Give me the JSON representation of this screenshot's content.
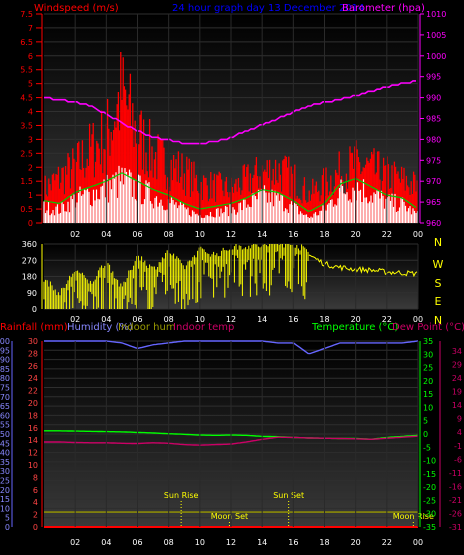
{
  "panel1": {
    "windspeed_label": "Windspeed (m/s)",
    "graph_title": "24 hour graph day  13 December 2014",
    "barometer_label": "Barometer (hpa)",
    "left_ticks": [
      "7.5",
      "7",
      "6.5",
      "6",
      "5.5",
      "5",
      "4.5",
      "4",
      "3.5",
      "3",
      "2.5",
      "2",
      "1.5",
      "1",
      "0.5",
      "0"
    ],
    "right_ticks": [
      "1010",
      "1005",
      "1000",
      "995",
      "990",
      "985",
      "980",
      "975",
      "970",
      "965",
      "960"
    ],
    "x_ticks": [
      "02",
      "04",
      "06",
      "08",
      "10",
      "12",
      "14",
      "16",
      "18",
      "20",
      "22",
      "00"
    ]
  },
  "panel2": {
    "left_ticks": [
      "360",
      "270",
      "180",
      "90",
      "0"
    ],
    "compass": [
      "N",
      "W",
      "S",
      "E",
      "N"
    ],
    "x_ticks": [
      "02",
      "04",
      "06",
      "08",
      "10",
      "12",
      "14",
      "16",
      "18",
      "20",
      "22",
      "00"
    ]
  },
  "panel3": {
    "rain_label": "Rainfall (mm)",
    "humidity_label": "Humidity (%)",
    "indoor_hum_label": "Indoor hum",
    "indoor_temp_label": "Indoor temp",
    "temperature_label": "Temperature (°C)",
    "dewpoint_label": "Dew Point (°C)",
    "humidity_ticks": [
      "100",
      "95",
      "90",
      "85",
      "80",
      "75",
      "70",
      "65",
      "60",
      "55",
      "50",
      "45",
      "40",
      "35",
      "30",
      "25",
      "20",
      "15",
      "10",
      "5",
      "0"
    ],
    "rain_ticks": [
      "30",
      "28",
      "26",
      "24",
      "22",
      "20",
      "18",
      "16",
      "14",
      "12",
      "10",
      "8",
      "6",
      "4",
      "2",
      "0"
    ],
    "temp_ticks": [
      "35",
      "30",
      "25",
      "20",
      "15",
      "10",
      "5",
      "0",
      "-5",
      "-10",
      "-15",
      "-20",
      "-25",
      "-30",
      "-35"
    ],
    "dew_ticks": [
      "34",
      "29",
      "24",
      "19",
      "14",
      "9",
      "4",
      "-1",
      "-6",
      "-11",
      "-16",
      "-21",
      "-26",
      "-31"
    ],
    "x_ticks": [
      "02",
      "04",
      "06",
      "08",
      "10",
      "12",
      "14",
      "16",
      "18",
      "20",
      "22",
      "00"
    ],
    "events": [
      {
        "name": "Sun Rise",
        "hour": 8.8
      },
      {
        "name": "Sun Set",
        "hour": 15.7
      },
      {
        "name": "Moon Set",
        "hour": 11.9
      },
      {
        "name": "Moon Rise",
        "hour": 23.7
      }
    ]
  },
  "chart_data": [
    {
      "type": "area",
      "title": "24 hour graph day  13 December 2014",
      "x_label": "",
      "xlim": [
        0,
        24
      ],
      "ylim_left": [
        0,
        7.5
      ],
      "ylim_right": [
        960,
        1010
      ],
      "series": [
        {
          "name": "Windspeed (m/s)",
          "axis": "left",
          "color": "#ff0000",
          "x": [
            0,
            1,
            2,
            3,
            4,
            5,
            6,
            7,
            8,
            9,
            10,
            11,
            12,
            13,
            14,
            15,
            16,
            17,
            18,
            19,
            20,
            21,
            22,
            23,
            24
          ],
          "values": [
            1.2,
            1.6,
            2.0,
            2.6,
            3.1,
            4.6,
            3.2,
            2.4,
            2.1,
            1.8,
            1.4,
            1.3,
            1.2,
            1.5,
            1.8,
            1.9,
            1.6,
            1.0,
            1.4,
            1.8,
            2.1,
            1.9,
            1.7,
            1.5,
            1.3
          ]
        },
        {
          "name": "Wind average",
          "color": "#ffffff",
          "x": [
            0,
            1,
            2,
            3,
            4,
            5,
            6,
            7,
            8,
            9,
            10,
            11,
            12,
            13,
            14,
            15,
            16,
            17,
            18,
            19,
            20,
            21,
            22,
            23,
            24
          ],
          "values": [
            0.6,
            0.5,
            0.9,
            1.1,
            1.3,
            1.6,
            1.3,
            1.0,
            0.8,
            0.5,
            0.3,
            0.4,
            0.5,
            0.7,
            1.0,
            0.9,
            0.6,
            0.2,
            0.5,
            1.2,
            1.4,
            1.1,
            0.8,
            0.7,
            0.3
          ]
        },
        {
          "name": "Barometer (hpa)",
          "axis": "right",
          "color": "#ff00ff",
          "x": [
            0,
            1,
            2,
            3,
            4,
            5,
            6,
            7,
            8,
            9,
            10,
            11,
            12,
            13,
            14,
            15,
            16,
            17,
            18,
            19,
            20,
            21,
            22,
            23,
            24
          ],
          "values": [
            990,
            989.5,
            989,
            988,
            986,
            984,
            982,
            980.5,
            980,
            979,
            979,
            979.5,
            980.5,
            982,
            983.5,
            985,
            986.5,
            988,
            989,
            989.5,
            990.5,
            991.5,
            992.5,
            993.5,
            994
          ]
        }
      ]
    },
    {
      "type": "scatter",
      "x_label": "",
      "xlim": [
        0,
        24
      ],
      "ylim": [
        0,
        360
      ],
      "series": [
        {
          "name": "Wind direction",
          "color": "#ffff00",
          "x": [
            0,
            1,
            2,
            3,
            4,
            5,
            6,
            7,
            8,
            9,
            10,
            11,
            12,
            13,
            14,
            15,
            16,
            17,
            18,
            19,
            20,
            21,
            22,
            23,
            24
          ],
          "values": [
            150,
            60,
            200,
            120,
            250,
            90,
            280,
            200,
            300,
            210,
            310,
            280,
            320,
            330,
            330,
            340,
            340,
            300,
            250,
            230,
            220,
            215,
            205,
            200,
            195
          ]
        }
      ]
    },
    {
      "type": "line",
      "x_label": "",
      "xlim": [
        0,
        24
      ],
      "series": [
        {
          "name": "Humidity (%)",
          "axis": "humidity",
          "color": "#6666ff",
          "x": [
            0,
            1,
            2,
            3,
            4,
            5,
            6,
            7,
            8,
            9,
            10,
            11,
            12,
            13,
            14,
            15,
            16,
            17,
            18,
            19,
            20,
            21,
            22,
            23,
            24
          ],
          "values": [
            100,
            100,
            100,
            100,
            100,
            99,
            96,
            98,
            99,
            100,
            100,
            100,
            100,
            100,
            100,
            99,
            99,
            93,
            96,
            99,
            99,
            99,
            99,
            99,
            100
          ]
        },
        {
          "name": "Temperature (°C)",
          "axis": "temp",
          "color": "#00ff00",
          "x": [
            0,
            1,
            2,
            3,
            4,
            5,
            6,
            7,
            8,
            9,
            10,
            11,
            12,
            13,
            14,
            15,
            16,
            17,
            18,
            19,
            20,
            21,
            22,
            23,
            24
          ],
          "values": [
            1.2,
            1.2,
            1.1,
            1.0,
            0.9,
            0.8,
            0.6,
            0.4,
            0.1,
            -0.1,
            -0.4,
            -0.5,
            -0.4,
            -0.5,
            -0.9,
            -1.0,
            -1.3,
            -1.5,
            -1.6,
            -1.7,
            -1.7,
            -2.0,
            -1.3,
            -0.9,
            -0.5
          ]
        },
        {
          "name": "Dew Point (°C)",
          "axis": "temp",
          "color": "#cc0066",
          "x": [
            0,
            1,
            2,
            3,
            4,
            5,
            6,
            7,
            8,
            9,
            10,
            11,
            12,
            13,
            14,
            15,
            16,
            17,
            18,
            19,
            20,
            21,
            22,
            23,
            24
          ],
          "values": [
            -3.0,
            -3.0,
            -3.2,
            -3.3,
            -3.3,
            -3.5,
            -3.6,
            -3.3,
            -3.5,
            -4.0,
            -4.2,
            -4.0,
            -3.8,
            -3.0,
            -2.0,
            -1.2,
            -1.3,
            -1.5,
            -1.6,
            -1.7,
            -1.8,
            -2.0,
            -1.6,
            -1.2,
            -0.8
          ]
        },
        {
          "name": "Indoor hum",
          "axis": "humidity",
          "color": "#999900",
          "x": [
            0,
            24
          ],
          "values": [
            8,
            8
          ]
        },
        {
          "name": "Rainfall (mm)",
          "axis": "rain",
          "color": "#ff0000",
          "x": [
            0,
            24
          ],
          "values": [
            0,
            0
          ]
        }
      ]
    }
  ]
}
